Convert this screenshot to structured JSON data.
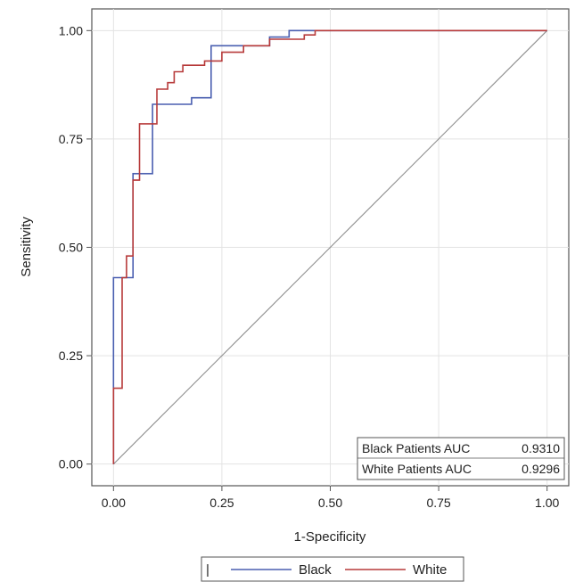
{
  "chart_data": {
    "type": "line",
    "xlabel": "1-Specificity",
    "ylabel": "Sensitivity",
    "xlim": [
      -0.05,
      1.05
    ],
    "ylim": [
      -0.05,
      1.05
    ],
    "xticks": [
      "0.00",
      "0.25",
      "0.50",
      "0.75",
      "1.00"
    ],
    "yticks": [
      "0.00",
      "0.25",
      "0.50",
      "0.75",
      "1.00"
    ],
    "grid": true,
    "reference_line": {
      "x": [
        0,
        1
      ],
      "y": [
        0,
        1
      ],
      "color": "#8c8c8c"
    },
    "series": [
      {
        "name": "Black",
        "color": "#4a5fb0",
        "x": [
          0.0,
          0.0,
          0.045,
          0.045,
          0.09,
          0.09,
          0.18,
          0.18,
          0.225,
          0.225,
          0.36,
          0.36,
          0.405,
          0.405,
          1.0
        ],
        "y": [
          0.0,
          0.43,
          0.43,
          0.67,
          0.67,
          0.83,
          0.83,
          0.845,
          0.845,
          0.965,
          0.965,
          0.985,
          0.985,
          1.0,
          1.0
        ]
      },
      {
        "name": "White",
        "color": "#b73a3a",
        "x": [
          0.0,
          0.0,
          0.02,
          0.02,
          0.03,
          0.03,
          0.045,
          0.045,
          0.06,
          0.06,
          0.075,
          0.075,
          0.1,
          0.1,
          0.125,
          0.125,
          0.14,
          0.14,
          0.16,
          0.16,
          0.21,
          0.21,
          0.25,
          0.25,
          0.3,
          0.3,
          0.36,
          0.36,
          0.44,
          0.44,
          0.465,
          0.465,
          1.0
        ],
        "y": [
          0.0,
          0.175,
          0.175,
          0.43,
          0.43,
          0.48,
          0.48,
          0.655,
          0.655,
          0.785,
          0.785,
          0.785,
          0.785,
          0.865,
          0.865,
          0.88,
          0.88,
          0.905,
          0.905,
          0.92,
          0.92,
          0.93,
          0.93,
          0.95,
          0.95,
          0.965,
          0.965,
          0.98,
          0.98,
          0.99,
          0.99,
          1.0,
          1.0
        ]
      }
    ],
    "inset_table": {
      "rows": [
        {
          "label": "Black Patients AUC",
          "value": "0.9310"
        },
        {
          "label": "White Patients AUC",
          "value": "0.9296"
        }
      ]
    },
    "legend": {
      "placement": "bottom",
      "marker": "|",
      "items": [
        "Black",
        "White"
      ]
    }
  }
}
